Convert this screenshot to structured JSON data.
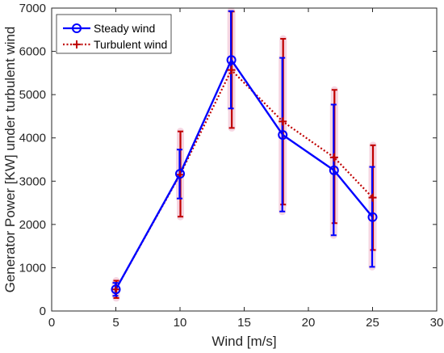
{
  "chart_data": {
    "type": "line",
    "xlabel": "Wind [m/s]",
    "ylabel": "Generator Power [KW] under turbulent wind",
    "xlim": [
      0,
      30
    ],
    "ylim": [
      0,
      7000
    ],
    "xticks": [
      0,
      5,
      10,
      15,
      20,
      25,
      30
    ],
    "yticks": [
      0,
      1000,
      2000,
      3000,
      4000,
      5000,
      6000,
      7000
    ],
    "grid": false,
    "legend_position": "top-left",
    "series": [
      {
        "name": "Steady wind",
        "color": "#0000ff",
        "line_style": "solid",
        "marker": "circle",
        "x": [
          5,
          10,
          14,
          18,
          22,
          25
        ],
        "y": [
          500,
          3170,
          5800,
          4070,
          3250,
          2170
        ],
        "y_err_low": [
          350,
          2600,
          4680,
          2300,
          1750,
          1020
        ],
        "y_err_high": [
          650,
          3730,
          6930,
          5850,
          4770,
          3330
        ]
      },
      {
        "name": "Turbulent wind",
        "color": "#c00000",
        "line_style": "dotted",
        "marker": "plus",
        "x": [
          5,
          10,
          14,
          18,
          22,
          25
        ],
        "y": [
          500,
          3150,
          5570,
          4380,
          3550,
          2620
        ],
        "y_err_low": [
          300,
          2180,
          4230,
          2460,
          2030,
          1410
        ],
        "y_err_high": [
          700,
          4150,
          6920,
          6290,
          5110,
          3830
        ]
      }
    ]
  }
}
